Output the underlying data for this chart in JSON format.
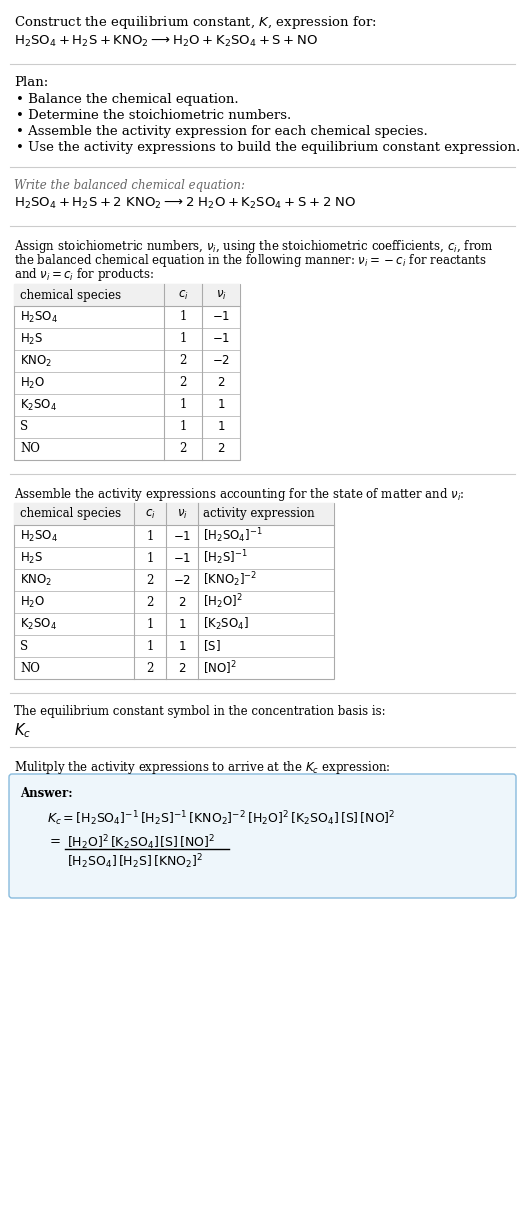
{
  "bg_color": "#ffffff",
  "text_color": "#000000",
  "table_border": "#aaaaaa",
  "answer_box_border": "#88bbdd",
  "answer_box_bg": "#eef6fb",
  "plan_bullets": [
    "Balance the chemical equation.",
    "Determine the stoichiometric numbers.",
    "Assemble the activity expression for each chemical species.",
    "Use the activity expressions to build the equilibrium constant expression."
  ],
  "table1_rows": [
    [
      "$\\mathrm{H_2SO_4}$",
      "1",
      "$-1$"
    ],
    [
      "$\\mathrm{H_2S}$",
      "1",
      "$-1$"
    ],
    [
      "$\\mathrm{KNO_2}$",
      "2",
      "$-2$"
    ],
    [
      "$\\mathrm{H_2O}$",
      "2",
      "$2$"
    ],
    [
      "$\\mathrm{K_2SO_4}$",
      "1",
      "$1$"
    ],
    [
      "S",
      "1",
      "$1$"
    ],
    [
      "NO",
      "2",
      "$2$"
    ]
  ],
  "table2_rows": [
    [
      "$\\mathrm{H_2SO_4}$",
      "1",
      "$-1$",
      "$[\\mathrm{H_2SO_4}]^{-1}$"
    ],
    [
      "$\\mathrm{H_2S}$",
      "1",
      "$-1$",
      "$[\\mathrm{H_2S}]^{-1}$"
    ],
    [
      "$\\mathrm{KNO_2}$",
      "2",
      "$-2$",
      "$[\\mathrm{KNO_2}]^{-2}$"
    ],
    [
      "$\\mathrm{H_2O}$",
      "2",
      "$2$",
      "$[\\mathrm{H_2O}]^{2}$"
    ],
    [
      "$\\mathrm{K_2SO_4}$",
      "1",
      "$1$",
      "$[\\mathrm{K_2SO_4}]$"
    ],
    [
      "S",
      "1",
      "$1$",
      "$[\\mathrm{S}]$"
    ],
    [
      "NO",
      "2",
      "$2$",
      "$[\\mathrm{NO}]^{2}$"
    ]
  ]
}
